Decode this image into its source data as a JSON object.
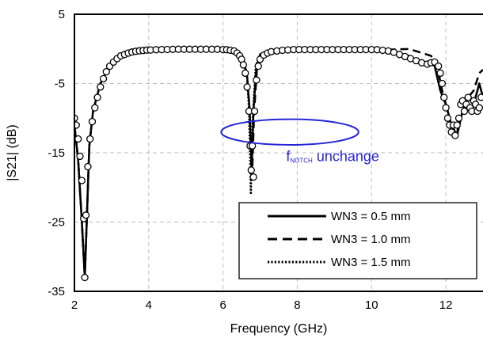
{
  "chart_data": {
    "type": "line",
    "title": "",
    "xlabel": "Frequency (GHz)",
    "ylabel": "|S21| (dB)",
    "xlim": [
      2,
      13
    ],
    "ylim": [
      -35,
      5
    ],
    "xticks": [
      2,
      4,
      6,
      8,
      10,
      12
    ],
    "yticks": [
      5,
      -5,
      -15,
      -25,
      -35
    ],
    "grid": true,
    "legend_position": "bottom-right",
    "series": [
      {
        "name": "WN3 = 0.5 mm",
        "style": "solid",
        "x": [
          2.0,
          2.1,
          2.2,
          2.28,
          2.33,
          2.4,
          2.5,
          2.7,
          3.0,
          3.5,
          4.0,
          5.0,
          6.0,
          6.4,
          6.55,
          6.65,
          6.72,
          6.77,
          6.82,
          6.9,
          7.0,
          7.2,
          7.6,
          8.5,
          9.5,
          10.5,
          11.0,
          11.3,
          11.55,
          11.7,
          11.85,
          12.0,
          12.15,
          12.3,
          12.45,
          12.6,
          12.75,
          12.9,
          13.0
        ],
        "y": [
          -11,
          -16,
          -25,
          -33,
          -25,
          -14,
          -9,
          -5,
          -2,
          -0.6,
          -0.3,
          -0.1,
          0,
          -0.4,
          -1.5,
          -4,
          -9,
          -18,
          -9,
          -2.5,
          -0.8,
          -0.3,
          -0.1,
          0,
          0,
          -0.3,
          -1,
          -2,
          -1.8,
          -2.5,
          -6,
          -8,
          -11,
          -12.5,
          -9,
          -7,
          -8,
          -5,
          -7
        ]
      },
      {
        "name": "WN3 = 1.0 mm",
        "style": "dashed",
        "x": [
          2.0,
          2.1,
          2.2,
          2.28,
          2.33,
          2.4,
          2.5,
          2.7,
          3.0,
          3.5,
          4.0,
          5.0,
          6.0,
          6.4,
          6.55,
          6.65,
          6.72,
          6.78,
          6.84,
          6.92,
          7.0,
          7.2,
          7.6,
          8.5,
          9.5,
          10.5,
          11.0,
          11.3,
          11.6,
          11.75,
          11.9,
          12.0,
          12.15,
          12.3,
          12.45,
          12.6,
          12.75,
          12.9,
          13.0
        ],
        "y": [
          -11,
          -16,
          -25,
          -33,
          -25,
          -14,
          -9,
          -5,
          -2,
          -0.6,
          -0.3,
          -0.1,
          0,
          -0.4,
          -1.5,
          -4,
          -9,
          -19,
          -9,
          -2.5,
          -0.8,
          -0.3,
          -0.1,
          0,
          0,
          -0.1,
          0,
          -0.5,
          -1,
          -2,
          -6,
          -8,
          -11,
          -12,
          -9,
          -7,
          -6,
          -3.5,
          -3
        ]
      },
      {
        "name": "WN3 = 1.5 mm",
        "style": "dotted",
        "x": [
          2.0,
          2.1,
          2.2,
          2.28,
          2.33,
          2.4,
          2.5,
          2.7,
          3.0,
          3.5,
          4.0,
          5.0,
          6.0,
          6.4,
          6.55,
          6.65,
          6.7,
          6.75,
          6.8,
          6.88,
          7.0,
          7.2,
          7.6,
          8.5,
          9.5,
          10.5,
          11.0,
          11.3,
          11.55,
          11.7,
          11.85,
          12.0,
          12.15,
          12.3,
          12.45,
          12.6,
          12.75,
          12.9,
          13.0
        ],
        "y": [
          -11,
          -16,
          -25,
          -33,
          -25,
          -14,
          -9,
          -5,
          -2,
          -0.6,
          -0.3,
          -0.1,
          0,
          -0.4,
          -1.5,
          -4,
          -9,
          -21,
          -10,
          -2.5,
          -0.8,
          -0.3,
          -0.1,
          0,
          0,
          -0.3,
          -1,
          -2,
          -1.8,
          -2.5,
          -6,
          -8,
          -11,
          -12.5,
          -9,
          -7,
          -8,
          -5,
          -7
        ]
      }
    ],
    "markers": {
      "style": "open-circle",
      "x": [
        2.0,
        2.05,
        2.1,
        2.15,
        2.2,
        2.25,
        2.28,
        2.31,
        2.36,
        2.42,
        2.48,
        2.55,
        2.62,
        2.7,
        2.78,
        2.86,
        2.95,
        3.05,
        3.15,
        3.25,
        3.35,
        3.45,
        3.55,
        3.65,
        3.75,
        3.85,
        3.95,
        4.05,
        4.2,
        4.35,
        4.5,
        4.65,
        4.8,
        4.95,
        5.1,
        5.25,
        5.4,
        5.55,
        5.7,
        5.85,
        6.0,
        6.1,
        6.2,
        6.3,
        6.38,
        6.45,
        6.5,
        6.55,
        6.6,
        6.65,
        6.7,
        6.73,
        6.76,
        6.79,
        6.82,
        6.85,
        6.9,
        6.95,
        7.0,
        7.1,
        7.2,
        7.3,
        7.45,
        7.6,
        7.75,
        7.9,
        8.05,
        8.2,
        8.35,
        8.5,
        8.65,
        8.8,
        8.95,
        9.1,
        9.25,
        9.4,
        9.55,
        9.7,
        9.85,
        10.0,
        10.15,
        10.3,
        10.45,
        10.6,
        10.75,
        10.9,
        11.05,
        11.2,
        11.35,
        11.5,
        11.6,
        11.7,
        11.8,
        11.85,
        11.9,
        11.95,
        12.0,
        12.05,
        12.1,
        12.15,
        12.2,
        12.25,
        12.3,
        12.35,
        12.4,
        12.45,
        12.5,
        12.55,
        12.6,
        12.65,
        12.7,
        12.75,
        12.8,
        12.85,
        12.9,
        12.95
      ],
      "y": [
        -10,
        -11,
        -13,
        -15.5,
        -19,
        -24.5,
        -33,
        -24,
        -17,
        -13,
        -10.5,
        -8.5,
        -7,
        -5.5,
        -4.3,
        -3.3,
        -2.5,
        -1.9,
        -1.4,
        -1.0,
        -0.8,
        -0.6,
        -0.45,
        -0.35,
        -0.28,
        -0.22,
        -0.18,
        -0.15,
        -0.12,
        -0.1,
        -0.08,
        -0.06,
        -0.05,
        -0.05,
        -0.05,
        -0.05,
        -0.05,
        -0.05,
        -0.05,
        -0.05,
        -0.1,
        -0.12,
        -0.2,
        -0.3,
        -0.6,
        -1.0,
        -1.5,
        -2.3,
        -3.5,
        -5.5,
        -9,
        -14,
        -17.5,
        -14,
        -18.5,
        -9,
        -4.5,
        -2.5,
        -1.5,
        -0.9,
        -0.6,
        -0.4,
        -0.3,
        -0.2,
        -0.15,
        -0.1,
        -0.1,
        -0.1,
        -0.1,
        -0.1,
        -0.1,
        -0.1,
        -0.1,
        -0.1,
        -0.1,
        -0.1,
        -0.1,
        -0.1,
        -0.1,
        -0.1,
        -0.12,
        -0.2,
        -0.3,
        -0.5,
        -0.8,
        -1.1,
        -1.4,
        -1.7,
        -2.0,
        -2.2,
        -2.0,
        -1.9,
        -2.5,
        -3.5,
        -5,
        -7,
        -8.5,
        -10,
        -11,
        -12,
        -11,
        -12.5,
        -11,
        -10,
        -8,
        -7.5,
        -9,
        -8,
        -7,
        -8.5,
        -9,
        -7.5,
        -8,
        -9,
        -8.5,
        -7
      ]
    },
    "legend": [
      {
        "label": "WN3 = 0.5 mm",
        "style": "solid"
      },
      {
        "label": "WN3 = 1.0 mm",
        "style": "dashed"
      },
      {
        "label": "WN3 = 1.5 mm",
        "style": "dotted"
      }
    ],
    "annotation": {
      "ellipse_center": [
        7.8,
        -12
      ],
      "ellipse_radii": [
        1.85,
        1.85
      ],
      "color": "#2424d8",
      "label_main": "f",
      "label_sub": "NOTCH",
      "label_rest": " unchange",
      "label_anchor": [
        7.7,
        -15.5
      ]
    }
  },
  "colors": {
    "line": "#000000",
    "grid": "#bfbfbf",
    "annotation": "#2424d8",
    "marker_fill": "#ffffff"
  }
}
